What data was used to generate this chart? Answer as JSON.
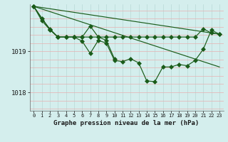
{
  "background_color": "#d4eeed",
  "grid_color_v": "#b8d8d5",
  "grid_color_h": "#e8b0b0",
  "line_color": "#1a5c1a",
  "title": "Graphe pression niveau de la mer (hPa)",
  "xlim": [
    -0.5,
    23.5
  ],
  "ylim": [
    1017.55,
    1020.15
  ],
  "yticks": [
    1018,
    1019
  ],
  "xticks": [
    0,
    1,
    2,
    3,
    4,
    5,
    6,
    7,
    8,
    9,
    10,
    11,
    12,
    13,
    14,
    15,
    16,
    17,
    18,
    19,
    20,
    21,
    22,
    23
  ],
  "series_main_x": [
    0,
    1,
    2,
    3,
    4,
    5,
    6,
    7,
    8,
    9,
    10,
    11,
    12,
    13,
    14,
    15,
    16,
    17,
    18,
    19,
    20,
    21,
    22,
    23
  ],
  "series_main_y": [
    1020.1,
    1019.8,
    1019.55,
    1019.35,
    1019.35,
    1019.35,
    1019.25,
    1018.95,
    1019.27,
    1019.2,
    1018.78,
    1018.75,
    1018.82,
    1018.72,
    1018.28,
    1018.26,
    1018.62,
    1018.62,
    1018.68,
    1018.65,
    1018.78,
    1019.05,
    1019.52,
    1019.42
  ],
  "series_flat_x": [
    0,
    1,
    2,
    3,
    4,
    5,
    6,
    7,
    8,
    9,
    10,
    11,
    12,
    13,
    14,
    15,
    16,
    17,
    18,
    19,
    20,
    21,
    22,
    23
  ],
  "series_flat_y": [
    1020.1,
    1019.75,
    1019.53,
    1019.35,
    1019.35,
    1019.35,
    1019.35,
    1019.35,
    1019.35,
    1019.35,
    1019.35,
    1019.35,
    1019.35,
    1019.35,
    1019.35,
    1019.35,
    1019.35,
    1019.35,
    1019.35,
    1019.35,
    1019.35,
    1019.55,
    1019.45,
    1019.42
  ],
  "series_trend1_x": [
    0,
    23
  ],
  "series_trend1_y": [
    1020.1,
    1019.42
  ],
  "series_trend2_x": [
    0,
    23
  ],
  "series_trend2_y": [
    1020.1,
    1018.62
  ],
  "series_spike_x": [
    0,
    2,
    3,
    4,
    5,
    6,
    7,
    8,
    9,
    10
  ],
  "series_spike_y": [
    1020.1,
    1019.53,
    1019.35,
    1019.35,
    1019.35,
    1019.35,
    1019.62,
    1019.35,
    1019.27,
    1018.82
  ]
}
